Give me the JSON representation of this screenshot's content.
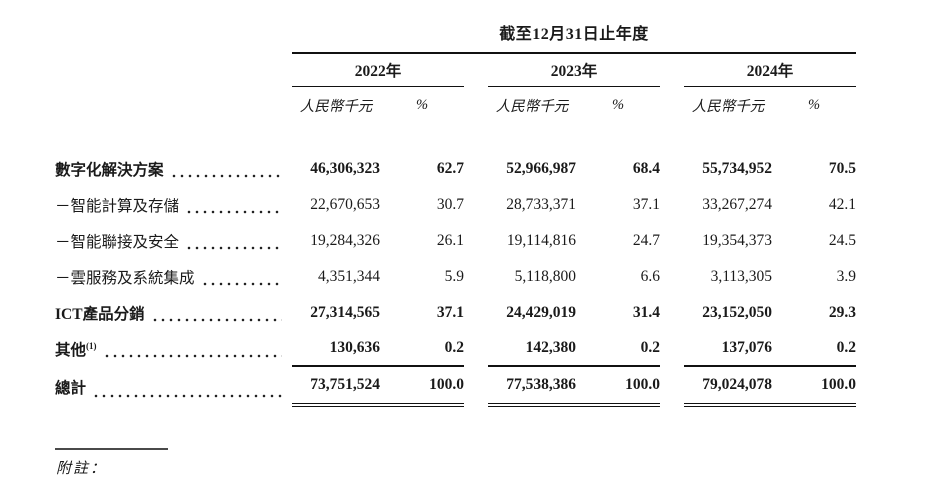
{
  "table": {
    "period_header": "截至12月31日止年度",
    "year_groups": [
      {
        "year": "2022年",
        "unit_label": "人民幣千元",
        "percent_label": "%"
      },
      {
        "year": "2023年",
        "unit_label": "人民幣千元",
        "percent_label": "%"
      },
      {
        "year": "2024年",
        "unit_label": "人民幣千元",
        "percent_label": "%"
      }
    ],
    "rows": [
      {
        "label": "數字化解決方案",
        "sup": "",
        "bold": true,
        "underline_after": false,
        "total": false,
        "cells": [
          "46,306,323",
          "62.7",
          "52,966,987",
          "68.4",
          "55,734,952",
          "70.5"
        ]
      },
      {
        "label": "－智能計算及存儲",
        "sup": "",
        "bold": false,
        "underline_after": false,
        "total": false,
        "cells": [
          "22,670,653",
          "30.7",
          "28,733,371",
          "37.1",
          "33,267,274",
          "42.1"
        ]
      },
      {
        "label": "－智能聯接及安全",
        "sup": "",
        "bold": false,
        "underline_after": false,
        "total": false,
        "cells": [
          "19,284,326",
          "26.1",
          "19,114,816",
          "24.7",
          "19,354,373",
          "24.5"
        ]
      },
      {
        "label": "－雲服務及系統集成",
        "sup": "",
        "bold": false,
        "underline_after": false,
        "total": false,
        "cells": [
          "4,351,344",
          "5.9",
          "5,118,800",
          "6.6",
          "3,113,305",
          "3.9"
        ]
      },
      {
        "label": "ICT產品分銷",
        "sup": "",
        "bold": true,
        "underline_after": false,
        "total": false,
        "cells": [
          "27,314,565",
          "37.1",
          "24,429,019",
          "31.4",
          "23,152,050",
          "29.3"
        ]
      },
      {
        "label": "其他",
        "sup": "(1)",
        "bold": true,
        "underline_after": true,
        "total": false,
        "cells": [
          "130,636",
          "0.2",
          "142,380",
          "0.2",
          "137,076",
          "0.2"
        ]
      },
      {
        "label": "總計",
        "sup": "",
        "bold": true,
        "underline_after": false,
        "total": true,
        "cells": [
          "73,751,524",
          "100.0",
          "77,538,386",
          "100.0",
          "79,024,078",
          "100.0"
        ]
      }
    ],
    "footnote_label": "附註："
  }
}
